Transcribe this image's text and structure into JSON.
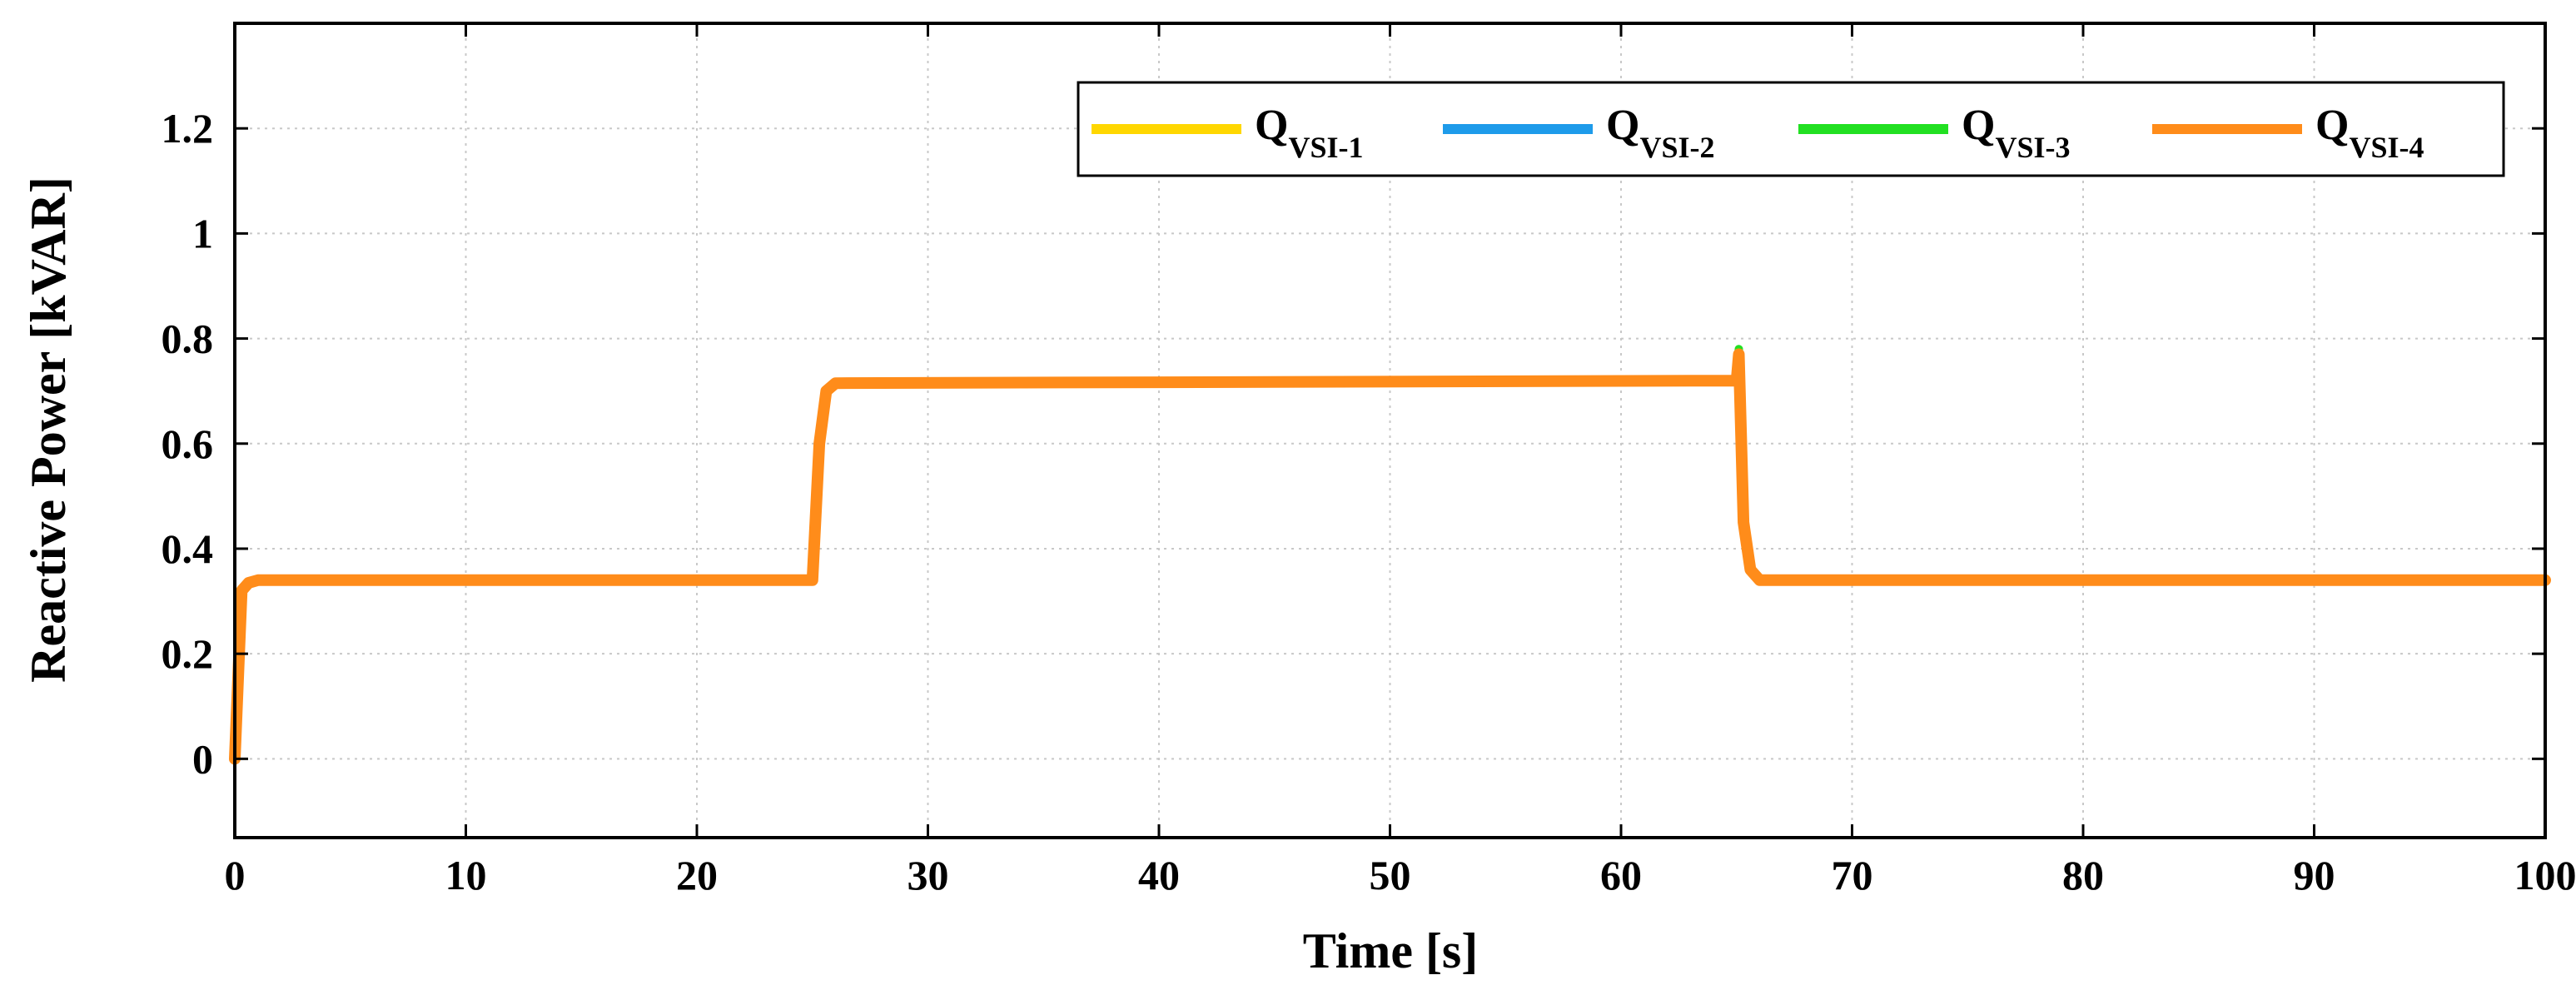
{
  "chart_data": {
    "type": "line",
    "xlabel": "Time [s]",
    "ylabel": "Reactive Power [kVAR]",
    "xlim": [
      0,
      100
    ],
    "ylim": [
      -0.15,
      1.4
    ],
    "xticks": [
      0,
      10,
      20,
      30,
      40,
      50,
      60,
      70,
      80,
      90,
      100
    ],
    "yticks": [
      0,
      0.2,
      0.4,
      0.6,
      0.8,
      1,
      1.2
    ],
    "ytick_labels": [
      "0",
      "0.2",
      "0.4",
      "0.6",
      "0.8",
      "1",
      "1.2"
    ],
    "grid": true,
    "legend_position": "top-right",
    "series": [
      {
        "name": "Q_VSI-1",
        "label_main": "Q",
        "label_sub": "VSI-1",
        "color": "#FFD700",
        "x": [
          0,
          0.3,
          0.6,
          1,
          25,
          25.3,
          25.6,
          26,
          65,
          65.1,
          65.3,
          65.6,
          66,
          100
        ],
        "y": [
          0,
          0.32,
          0.335,
          0.34,
          0.34,
          0.6,
          0.7,
          0.715,
          0.72,
          0.75,
          0.45,
          0.36,
          0.34,
          0.34
        ]
      },
      {
        "name": "Q_VSI-2",
        "label_main": "Q",
        "label_sub": "VSI-2",
        "color": "#1E9BEA",
        "x": [
          0,
          0.3,
          0.6,
          1,
          25,
          25.3,
          25.6,
          26,
          65,
          65.1,
          65.3,
          65.6,
          66,
          100
        ],
        "y": [
          0,
          0.32,
          0.335,
          0.34,
          0.34,
          0.6,
          0.7,
          0.715,
          0.72,
          0.76,
          0.45,
          0.36,
          0.34,
          0.34
        ]
      },
      {
        "name": "Q_VSI-3",
        "label_main": "Q",
        "label_sub": "VSI-3",
        "color": "#22E022",
        "x": [
          0,
          0.3,
          0.6,
          1,
          25,
          25.3,
          25.6,
          26,
          65,
          65.1,
          65.3,
          65.6,
          66,
          100
        ],
        "y": [
          0,
          0.32,
          0.335,
          0.34,
          0.34,
          0.6,
          0.7,
          0.715,
          0.72,
          0.78,
          0.45,
          0.36,
          0.34,
          0.34
        ]
      },
      {
        "name": "Q_VSI-4",
        "label_main": "Q",
        "label_sub": "VSI-4",
        "color": "#FF8C1A",
        "x": [
          0,
          0.3,
          0.6,
          1,
          25,
          25.3,
          25.6,
          26,
          65,
          65.1,
          65.3,
          65.6,
          66,
          100
        ],
        "y": [
          0,
          0.32,
          0.335,
          0.34,
          0.34,
          0.6,
          0.7,
          0.715,
          0.72,
          0.77,
          0.45,
          0.36,
          0.34,
          0.34
        ]
      }
    ]
  }
}
